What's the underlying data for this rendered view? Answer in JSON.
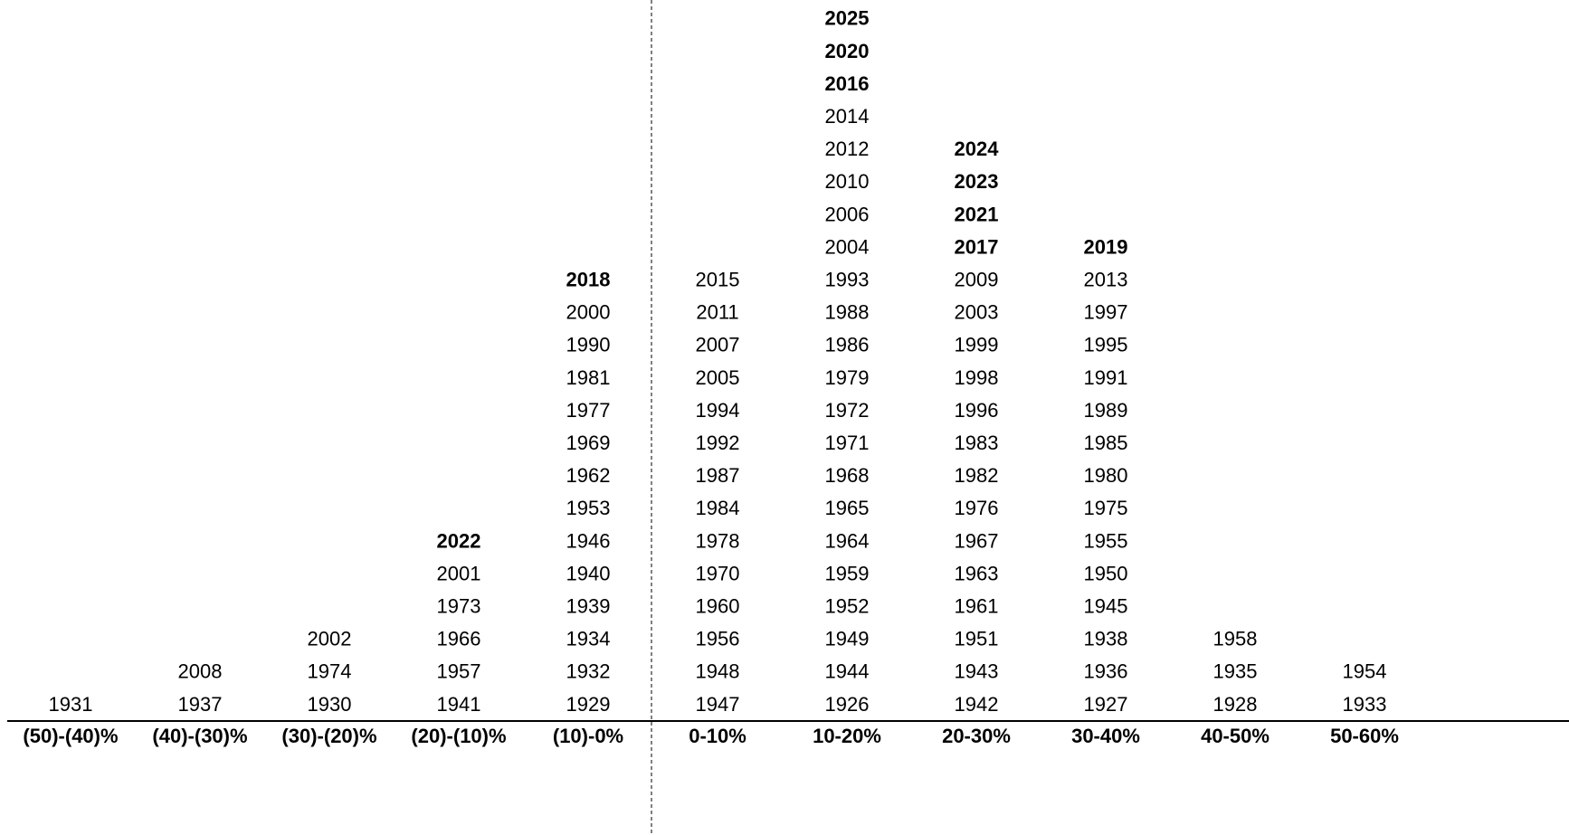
{
  "columns": [
    {
      "label": "(50)-(40)%",
      "years": [
        "1931"
      ]
    },
    {
      "label": "(40)-(30)%",
      "years": [
        "2008",
        "1937"
      ]
    },
    {
      "label": "(30)-(20)%",
      "years": [
        "2002",
        "1974",
        "1930"
      ]
    },
    {
      "label": "(20)-(10)%",
      "years": [
        {
          "text": "2022",
          "bold": true
        },
        "2001",
        "1973",
        "1966",
        "1957",
        "1941"
      ]
    },
    {
      "label": "(10)-0%",
      "years": [
        {
          "text": "2018",
          "bold": true
        },
        "2000",
        "1990",
        "1981",
        "1977",
        "1969",
        "1962",
        "1953",
        "1946",
        "1940",
        "1939",
        "1934",
        "1932",
        "1929"
      ]
    },
    {
      "label": "0-10%",
      "years": [
        "2015",
        "2011",
        "2007",
        "2005",
        "1994",
        "1992",
        "1987",
        "1984",
        "1978",
        "1970",
        "1960",
        "1956",
        "1948",
        "1947"
      ]
    },
    {
      "label": "10-20%",
      "years": [
        {
          "text": "2025",
          "bold": true
        },
        {
          "text": "2020",
          "bold": true
        },
        {
          "text": "2016",
          "bold": true
        },
        "2014",
        "2012",
        "2010",
        "2006",
        "2004",
        "1993",
        "1988",
        "1986",
        "1979",
        "1972",
        "1971",
        "1968",
        "1965",
        "1964",
        "1959",
        "1952",
        "1949",
        "1944",
        "1926"
      ]
    },
    {
      "label": "20-30%",
      "years": [
        {
          "text": "2024",
          "bold": true
        },
        {
          "text": "2023",
          "bold": true
        },
        {
          "text": "2021",
          "bold": true
        },
        {
          "text": "2017",
          "bold": true
        },
        "2009",
        "2003",
        "1999",
        "1998",
        "1996",
        "1983",
        "1982",
        "1976",
        "1967",
        "1963",
        "1961",
        "1951",
        "1943",
        "1942"
      ]
    },
    {
      "label": "30-40%",
      "years": [
        {
          "text": "2019",
          "bold": true
        },
        "2013",
        "1997",
        "1995",
        "1991",
        "1989",
        "1985",
        "1980",
        "1975",
        "1955",
        "1950",
        "1945",
        "1938",
        "1936",
        "1927"
      ]
    },
    {
      "label": "40-50%",
      "years": [
        "1958",
        "1935",
        "1928"
      ]
    },
    {
      "label": "50-60%",
      "years": [
        "1954",
        "1933"
      ]
    }
  ]
}
